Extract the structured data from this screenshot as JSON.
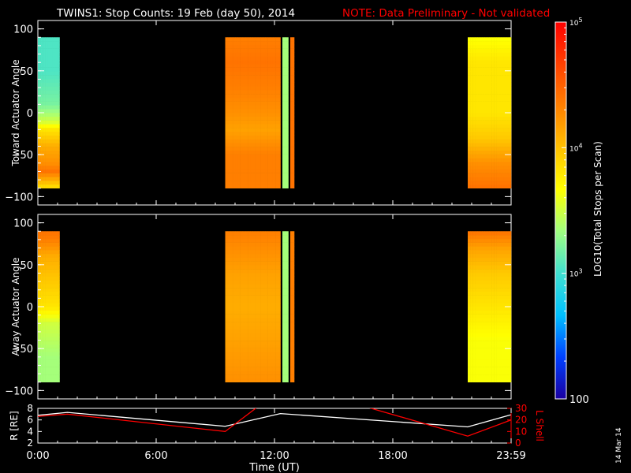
{
  "header": {
    "title": "TWINS1: Stop Counts: 19 Feb (day  50), 2014",
    "note": "NOTE: Data Preliminary - Not validated",
    "note_color": "#ff0000"
  },
  "footer": {
    "date_stamp": "14 Mar 14",
    "xlabel": "Time (UT)"
  },
  "colorbar": {
    "label": "LOG10(Total Stops per Scan)",
    "tick_labels": [
      "10^5",
      "10^4",
      "10^3",
      "100"
    ],
    "scale": "log",
    "range": [
      100,
      100000
    ],
    "colormap": [
      "#1a00a0",
      "#0040ff",
      "#00c0ff",
      "#40e0d0",
      "#a0ff80",
      "#ffff00",
      "#ffc000",
      "#ff8000",
      "#ff4000",
      "#ff0000"
    ]
  },
  "chart_data": [
    {
      "type": "heatmap",
      "ylabel": "Toward Actuator Angle",
      "ylim": [
        -110,
        110
      ],
      "yticks": [
        100,
        50,
        0,
        -50,
        -100
      ],
      "xlim": [
        0,
        24
      ],
      "xtick_labels": [
        "0:00",
        "6:00",
        "12:00",
        "18:00",
        "23:59"
      ],
      "xticks_hours": [
        0,
        6,
        12,
        18,
        24
      ],
      "angle_range": [
        -90,
        90
      ],
      "segments": [
        {
          "t_start": 0.0,
          "t_end": 1.1,
          "profile": [
            [
              -88,
              0.62
            ],
            [
              -70,
              0.8
            ],
            [
              -60,
              0.75
            ],
            [
              -40,
              0.7
            ],
            [
              -20,
              0.6
            ],
            [
              -10,
              0.5
            ],
            [
              10,
              0.4
            ],
            [
              50,
              0.35
            ],
            [
              90,
              0.35
            ]
          ]
        },
        {
          "t_start": 9.5,
          "t_end": 12.3,
          "profile": [
            [
              -88,
              0.78
            ],
            [
              -50,
              0.78
            ],
            [
              -20,
              0.72
            ],
            [
              0,
              0.75
            ],
            [
              30,
              0.78
            ],
            [
              60,
              0.8
            ],
            [
              90,
              0.78
            ]
          ]
        },
        {
          "t_start": 12.4,
          "t_end": 12.7,
          "profile": [
            [
              -88,
              0.45
            ],
            [
              90,
              0.45
            ]
          ]
        },
        {
          "t_start": 12.8,
          "t_end": 13.0,
          "profile": [
            [
              -88,
              0.8
            ],
            [
              90,
              0.8
            ]
          ]
        },
        {
          "t_start": 21.8,
          "t_end": 24.0,
          "profile": [
            [
              -88,
              0.8
            ],
            [
              -60,
              0.75
            ],
            [
              -30,
              0.65
            ],
            [
              0,
              0.6
            ],
            [
              30,
              0.6
            ],
            [
              60,
              0.6
            ],
            [
              90,
              0.55
            ]
          ]
        }
      ]
    },
    {
      "type": "heatmap",
      "ylabel": "Away Actuator Angle",
      "ylim": [
        -110,
        110
      ],
      "yticks": [
        100,
        50,
        0,
        -50,
        -100
      ],
      "xlim": [
        0,
        24
      ],
      "xtick_labels": [
        "0:00",
        "6:00",
        "12:00",
        "18:00",
        "23:59"
      ],
      "xticks_hours": [
        0,
        6,
        12,
        18,
        24
      ],
      "angle_range": [
        -90,
        90
      ],
      "segments": [
        {
          "t_start": 0.0,
          "t_end": 1.1,
          "profile": [
            [
              -88,
              0.45
            ],
            [
              -60,
              0.45
            ],
            [
              -20,
              0.5
            ],
            [
              0,
              0.6
            ],
            [
              30,
              0.65
            ],
            [
              60,
              0.7
            ],
            [
              80,
              0.78
            ],
            [
              90,
              0.8
            ]
          ]
        },
        {
          "t_start": 9.5,
          "t_end": 12.3,
          "profile": [
            [
              -88,
              0.75
            ],
            [
              -40,
              0.72
            ],
            [
              0,
              0.7
            ],
            [
              40,
              0.72
            ],
            [
              90,
              0.78
            ]
          ]
        },
        {
          "t_start": 12.4,
          "t_end": 12.7,
          "profile": [
            [
              -88,
              0.45
            ],
            [
              90,
              0.45
            ]
          ]
        },
        {
          "t_start": 12.8,
          "t_end": 13.0,
          "profile": [
            [
              -88,
              0.78
            ],
            [
              90,
              0.78
            ]
          ]
        },
        {
          "t_start": 21.8,
          "t_end": 24.0,
          "profile": [
            [
              -88,
              0.55
            ],
            [
              -40,
              0.55
            ],
            [
              0,
              0.6
            ],
            [
              40,
              0.65
            ],
            [
              70,
              0.72
            ],
            [
              90,
              0.8
            ]
          ]
        }
      ]
    },
    {
      "type": "line",
      "ylabel": "R [RE]",
      "y2label": "L Shell",
      "ylim": [
        2,
        8
      ],
      "yticks": [
        2,
        4,
        6,
        8
      ],
      "y2lim": [
        0,
        30
      ],
      "y2ticks": [
        0,
        10,
        20,
        30
      ],
      "xlim": [
        0,
        24
      ],
      "xtick_labels": [
        "0:00",
        "6:00",
        "12:00",
        "18:00",
        "23:59"
      ],
      "xticks_hours": [
        0,
        6,
        12,
        18,
        24
      ],
      "series": [
        {
          "name": "R [RE]",
          "axis": "left",
          "color": "#ffffff",
          "x": [
            0,
            1.5,
            9.5,
            12.3,
            21.8,
            24
          ],
          "y": [
            6.8,
            7.3,
            4.9,
            7.1,
            4.8,
            6.9
          ]
        },
        {
          "name": "L Shell",
          "axis": "right",
          "color": "#ff0000",
          "x": [
            0,
            1.5,
            9.5,
            11.2,
            16.5,
            21.8,
            24
          ],
          "y": [
            23,
            25,
            10,
            32,
            32,
            6,
            20
          ]
        }
      ]
    }
  ]
}
